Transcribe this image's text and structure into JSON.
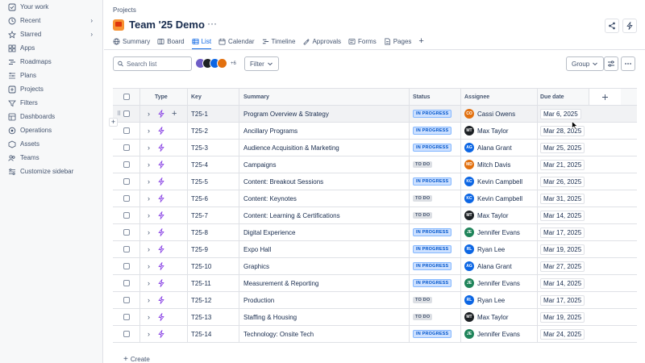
{
  "sidebar": {
    "items": [
      {
        "label": "Your work",
        "icon": "work-icon",
        "chevron": false
      },
      {
        "label": "Recent",
        "icon": "clock-icon",
        "chevron": true
      },
      {
        "label": "Starred",
        "icon": "star-icon",
        "chevron": true
      },
      {
        "label": "Apps",
        "icon": "apps-icon",
        "chevron": false
      },
      {
        "label": "Roadmaps",
        "icon": "roadmap-icon",
        "chevron": false
      },
      {
        "label": "Plans",
        "icon": "plans-icon",
        "chevron": false
      },
      {
        "label": "Projects",
        "icon": "projects-icon",
        "chevron": false
      },
      {
        "label": "Filters",
        "icon": "filter-icon",
        "chevron": false
      },
      {
        "label": "Dashboards",
        "icon": "dashboard-icon",
        "chevron": false
      },
      {
        "label": "Operations",
        "icon": "operations-icon",
        "chevron": false
      },
      {
        "label": "Assets",
        "icon": "assets-icon",
        "chevron": false
      },
      {
        "label": "Teams",
        "icon": "teams-icon",
        "chevron": false
      },
      {
        "label": "Customize sidebar",
        "icon": "customize-icon",
        "chevron": false
      }
    ]
  },
  "header": {
    "breadcrumb": "Projects",
    "title": "Team '25 Demo",
    "more": "···"
  },
  "tabs": [
    {
      "label": "Summary",
      "icon": "globe-icon",
      "active": false
    },
    {
      "label": "Board",
      "icon": "board-icon",
      "active": false
    },
    {
      "label": "List",
      "icon": "list-icon",
      "active": true
    },
    {
      "label": "Calendar",
      "icon": "calendar-icon",
      "active": false
    },
    {
      "label": "Timeline",
      "icon": "timeline-icon",
      "active": false
    },
    {
      "label": "Approvals",
      "icon": "approvals-icon",
      "active": false
    },
    {
      "label": "Forms",
      "icon": "forms-icon",
      "active": false
    },
    {
      "label": "Pages",
      "icon": "pages-icon",
      "active": false
    }
  ],
  "toolbar": {
    "search_placeholder": "Search list",
    "avatars_more": "+6",
    "filter_label": "Filter",
    "group_label": "Group"
  },
  "table": {
    "columns": [
      "Type",
      "Key",
      "Summary",
      "Status",
      "Assignee",
      "Due date"
    ],
    "rows": [
      {
        "key": "T25-1",
        "summary": "Program Overview & Strategy",
        "status": "IN PROGRESS",
        "assignee": "Cassi Owens",
        "initials": "CO",
        "avatar_color": "#e2700f",
        "due": "Mar 6, 2025"
      },
      {
        "key": "T25-2",
        "summary": "Ancillary Programs",
        "status": "IN PROGRESS",
        "assignee": "Max Taylor",
        "initials": "MT",
        "avatar_color": "#1d2125",
        "due": "Mar 28, 2025"
      },
      {
        "key": "T25-3",
        "summary": "Audience Acquisition & Marketing",
        "status": "IN PROGRESS",
        "assignee": "Alana Grant",
        "initials": "AG",
        "avatar_color": "#0c66e4",
        "due": "Mar 25, 2025"
      },
      {
        "key": "T25-4",
        "summary": "Campaigns",
        "status": "TO DO",
        "assignee": "Mitch Davis",
        "initials": "MD",
        "avatar_color": "#e2700f",
        "due": "Mar 21, 2025"
      },
      {
        "key": "T25-5",
        "summary": "Content: Breakout Sessions",
        "status": "IN PROGRESS",
        "assignee": "Kevin Campbell",
        "initials": "KC",
        "avatar_color": "#0c66e4",
        "due": "Mar 26, 2025"
      },
      {
        "key": "T25-6",
        "summary": "Content: Keynotes",
        "status": "TO DO",
        "assignee": "Kevin Campbell",
        "initials": "KC",
        "avatar_color": "#0c66e4",
        "due": "Mar 31, 2025"
      },
      {
        "key": "T25-7",
        "summary": "Content: Learning & Certifications",
        "status": "TO DO",
        "assignee": "Max Taylor",
        "initials": "MT",
        "avatar_color": "#1d2125",
        "due": "Mar 14, 2025"
      },
      {
        "key": "T25-8",
        "summary": "Digital Experience",
        "status": "IN PROGRESS",
        "assignee": "Jennifer Evans",
        "initials": "JE",
        "avatar_color": "#1f845a",
        "due": "Mar 17, 2025"
      },
      {
        "key": "T25-9",
        "summary": "Expo Hall",
        "status": "IN PROGRESS",
        "assignee": "Ryan Lee",
        "initials": "RL",
        "avatar_color": "#0c66e4",
        "due": "Mar 19, 2025"
      },
      {
        "key": "T25-10",
        "summary": "Graphics",
        "status": "IN PROGRESS",
        "assignee": "Alana Grant",
        "initials": "AG",
        "avatar_color": "#0c66e4",
        "due": "Mar 27, 2025"
      },
      {
        "key": "T25-11",
        "summary": "Measurement & Reporting",
        "status": "IN PROGRESS",
        "assignee": "Jennifer Evans",
        "initials": "JE",
        "avatar_color": "#1f845a",
        "due": "Mar 14, 2025"
      },
      {
        "key": "T25-12",
        "summary": "Production",
        "status": "TO DO",
        "assignee": "Ryan Lee",
        "initials": "RL",
        "avatar_color": "#0c66e4",
        "due": "Mar 17, 2025"
      },
      {
        "key": "T25-13",
        "summary": "Staffing & Housing",
        "status": "TO DO",
        "assignee": "Max Taylor",
        "initials": "MT",
        "avatar_color": "#1d2125",
        "due": "Mar 19, 2025"
      },
      {
        "key": "T25-14",
        "summary": "Technology: Onsite Tech",
        "status": "IN PROGRESS",
        "assignee": "Jennifer Evans",
        "initials": "JE",
        "avatar_color": "#1f845a",
        "due": "Mar 24, 2025"
      }
    ],
    "create_label": "Create"
  },
  "colors": {
    "accent": "#0c66e4",
    "in_progress_bg": "#cce0ff",
    "todo_bg": "#dcdfe4",
    "bolt": "#8f4ce6"
  }
}
